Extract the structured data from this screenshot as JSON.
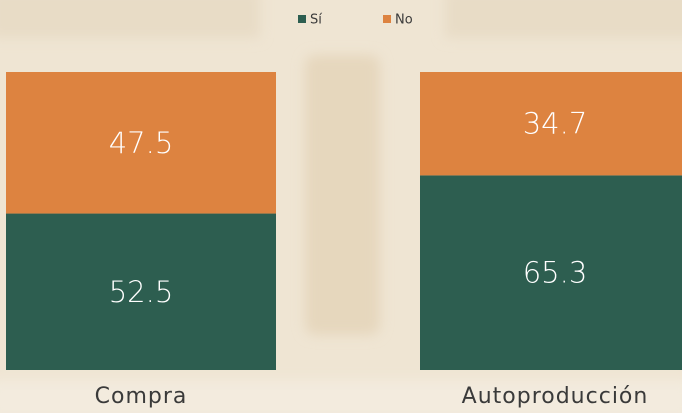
{
  "chart_data": {
    "type": "stacked-bar",
    "categories": [
      "Compra",
      "Autoproducción"
    ],
    "series": [
      {
        "name": "Sí",
        "color": "#2d5e50",
        "values": [
          52.5,
          65.3
        ]
      },
      {
        "name": "No",
        "color": "#dd8340",
        "values": [
          47.5,
          34.7
        ]
      }
    ],
    "ylim": [
      0,
      100
    ]
  }
}
